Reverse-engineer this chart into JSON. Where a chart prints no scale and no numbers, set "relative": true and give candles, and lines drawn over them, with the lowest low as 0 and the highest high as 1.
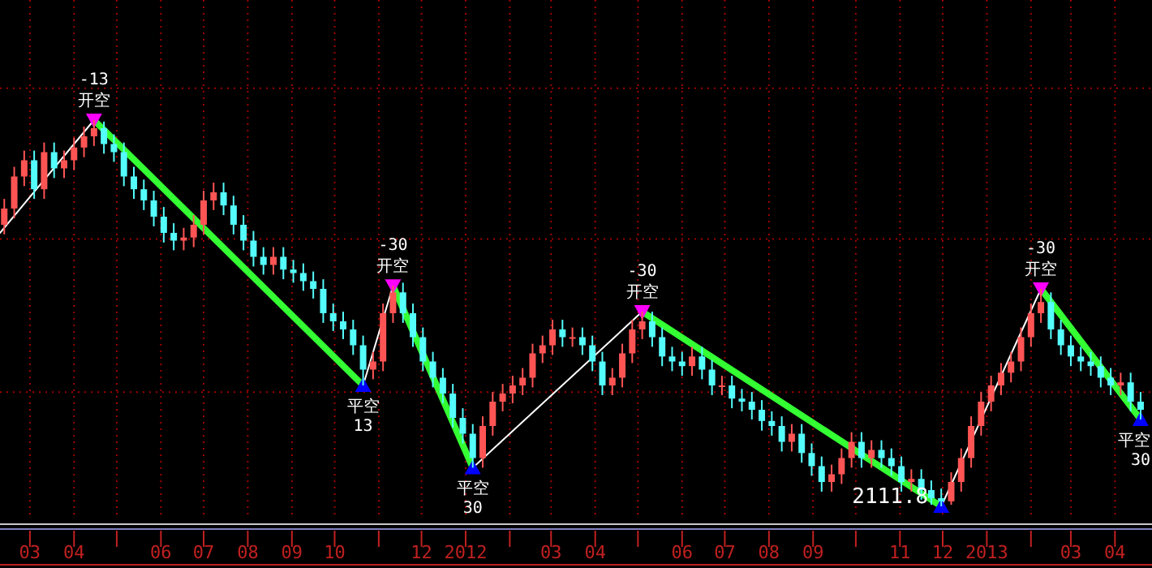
{
  "chart_data": {
    "type": "candlestick",
    "relative": true,
    "grid": true,
    "xlim": [
      "2011-02-08",
      "2013-04-27"
    ],
    "xticks": [
      {
        "value": "2011-03-01",
        "label": "03"
      },
      {
        "value": "2011-04-01",
        "label": "04"
      },
      {
        "value": "2011-05-01",
        "label": null
      },
      {
        "value": "2011-06-01",
        "label": "06"
      },
      {
        "value": "2011-07-01",
        "label": "07"
      },
      {
        "value": "2011-08-01",
        "label": "08"
      },
      {
        "value": "2011-09-01",
        "label": "09"
      },
      {
        "value": "2011-10-01",
        "label": "10"
      },
      {
        "value": "2011-11-01",
        "label": null
      },
      {
        "value": "2011-12-01",
        "label": "12"
      },
      {
        "value": "2012-01-01",
        "label": "2012"
      },
      {
        "value": "2012-02-01",
        "label": null
      },
      {
        "value": "2012-03-01",
        "label": "03"
      },
      {
        "value": "2012-04-01",
        "label": "04"
      },
      {
        "value": "2012-05-01",
        "label": null
      },
      {
        "value": "2012-06-01",
        "label": "06"
      },
      {
        "value": "2012-07-01",
        "label": "07"
      },
      {
        "value": "2012-08-01",
        "label": "08"
      },
      {
        "value": "2012-09-01",
        "label": "09"
      },
      {
        "value": "2012-10-01",
        "label": null
      },
      {
        "value": "2012-11-01",
        "label": "11"
      },
      {
        "value": "2012-12-01",
        "label": "12"
      },
      {
        "value": "2013-01-01",
        "label": "2013"
      },
      {
        "value": "2013-02-01",
        "label": null
      },
      {
        "value": "2013-03-01",
        "label": "03"
      },
      {
        "value": "2013-04-01",
        "label": "04"
      }
    ],
    "series": [
      {
        "x": [
          "2011-02-11",
          "2011-02-18",
          "2011-02-25",
          "2011-03-04",
          "2011-03-11",
          "2011-03-18",
          "2011-03-25",
          "2011-04-01",
          "2011-04-08",
          "2011-04-15",
          "2011-04-22",
          "2011-04-29",
          "2011-05-06",
          "2011-05-13",
          "2011-05-20",
          "2011-05-27",
          "2011-06-03",
          "2011-06-10",
          "2011-06-17",
          "2011-06-24",
          "2011-07-01",
          "2011-07-08",
          "2011-07-15",
          "2011-07-22",
          "2011-07-29",
          "2011-08-05",
          "2011-08-12",
          "2011-08-19",
          "2011-08-26",
          "2011-09-02",
          "2011-09-09",
          "2011-09-16",
          "2011-09-23",
          "2011-09-30",
          "2011-10-07",
          "2011-10-14",
          "2011-10-21",
          "2011-10-28",
          "2011-11-04",
          "2011-11-11",
          "2011-11-18",
          "2011-11-25",
          "2011-12-02",
          "2011-12-09",
          "2011-12-16",
          "2011-12-23",
          "2011-12-30",
          "2012-01-06",
          "2012-01-13",
          "2012-01-20",
          "2012-01-27",
          "2012-02-03",
          "2012-02-10",
          "2012-02-17",
          "2012-02-24",
          "2012-03-02",
          "2012-03-09",
          "2012-03-16",
          "2012-03-23",
          "2012-03-30",
          "2012-04-06",
          "2012-04-13",
          "2012-04-20",
          "2012-04-27",
          "2012-05-04",
          "2012-05-11",
          "2012-05-18",
          "2012-05-25",
          "2012-06-01",
          "2012-06-08",
          "2012-06-15",
          "2012-06-22",
          "2012-06-29",
          "2012-07-06",
          "2012-07-13",
          "2012-07-20",
          "2012-07-27",
          "2012-08-03",
          "2012-08-10",
          "2012-08-17",
          "2012-08-24",
          "2012-08-31",
          "2012-09-07",
          "2012-09-14",
          "2012-09-21",
          "2012-09-28",
          "2012-10-05",
          "2012-10-12",
          "2012-10-19",
          "2012-10-26",
          "2012-11-02",
          "2012-11-09",
          "2012-11-16",
          "2012-11-23",
          "2012-11-30",
          "2012-12-07",
          "2012-12-14",
          "2012-12-21",
          "2012-12-28",
          "2013-01-04",
          "2013-01-11",
          "2013-01-18",
          "2013-01-25",
          "2013-02-01",
          "2013-02-08",
          "2013-02-15",
          "2013-02-22",
          "2013-03-01",
          "2013-03-08",
          "2013-03-15",
          "2013-03-22",
          "2013-03-29",
          "2013-04-05",
          "2013-04-12",
          "2013-04-19"
        ],
        "ohlc": [
          [
            0.729,
            0.796,
            0.704,
            0.771
          ],
          [
            0.771,
            0.879,
            0.746,
            0.854
          ],
          [
            0.854,
            0.921,
            0.829,
            0.896
          ],
          [
            0.896,
            0.921,
            0.796,
            0.821
          ],
          [
            0.821,
            0.942,
            0.796,
            0.917
          ],
          [
            0.917,
            0.942,
            0.85,
            0.875
          ],
          [
            0.875,
            0.921,
            0.85,
            0.896
          ],
          [
            0.896,
            0.954,
            0.871,
            0.929
          ],
          [
            0.929,
            0.983,
            0.904,
            0.958
          ],
          [
            0.958,
            1,
            0.933,
            0.979
          ],
          [
            0.979,
            0.996,
            0.913,
            0.938
          ],
          [
            0.938,
            0.963,
            0.892,
            0.917
          ],
          [
            0.917,
            0.942,
            0.829,
            0.854
          ],
          [
            0.854,
            0.879,
            0.796,
            0.821
          ],
          [
            0.821,
            0.846,
            0.767,
            0.792
          ],
          [
            0.792,
            0.817,
            0.725,
            0.75
          ],
          [
            0.75,
            0.775,
            0.683,
            0.708
          ],
          [
            0.708,
            0.733,
            0.663,
            0.688
          ],
          [
            0.688,
            0.721,
            0.663,
            0.696
          ],
          [
            0.696,
            0.754,
            0.671,
            0.729
          ],
          [
            0.729,
            0.817,
            0.704,
            0.792
          ],
          [
            0.792,
            0.838,
            0.767,
            0.813
          ],
          [
            0.813,
            0.838,
            0.754,
            0.779
          ],
          [
            0.779,
            0.804,
            0.704,
            0.729
          ],
          [
            0.729,
            0.754,
            0.663,
            0.688
          ],
          [
            0.688,
            0.713,
            0.621,
            0.646
          ],
          [
            0.646,
            0.671,
            0.6,
            0.625
          ],
          [
            0.625,
            0.671,
            0.6,
            0.646
          ],
          [
            0.646,
            0.671,
            0.588,
            0.613
          ],
          [
            0.613,
            0.638,
            0.579,
            0.604
          ],
          [
            0.604,
            0.629,
            0.558,
            0.583
          ],
          [
            0.583,
            0.608,
            0.538,
            0.563
          ],
          [
            0.563,
            0.588,
            0.475,
            0.5
          ],
          [
            0.5,
            0.525,
            0.454,
            0.479
          ],
          [
            0.479,
            0.504,
            0.433,
            0.458
          ],
          [
            0.458,
            0.483,
            0.392,
            0.417
          ],
          [
            0.417,
            0.442,
            0.313,
            0.354
          ],
          [
            0.354,
            0.4,
            0.329,
            0.375
          ],
          [
            0.375,
            0.525,
            0.35,
            0.5
          ],
          [
            0.5,
            0.571,
            0.475,
            0.554
          ],
          [
            0.554,
            0.579,
            0.475,
            0.5
          ],
          [
            0.5,
            0.525,
            0.413,
            0.438
          ],
          [
            0.438,
            0.463,
            0.35,
            0.375
          ],
          [
            0.375,
            0.4,
            0.308,
            0.333
          ],
          [
            0.333,
            0.358,
            0.267,
            0.292
          ],
          [
            0.292,
            0.317,
            0.204,
            0.229
          ],
          [
            0.229,
            0.254,
            0.163,
            0.188
          ],
          [
            0.188,
            0.213,
            0.1,
            0.125
          ],
          [
            0.125,
            0.233,
            0.1,
            0.208
          ],
          [
            0.208,
            0.296,
            0.183,
            0.271
          ],
          [
            0.271,
            0.317,
            0.246,
            0.292
          ],
          [
            0.292,
            0.338,
            0.267,
            0.313
          ],
          [
            0.313,
            0.358,
            0.288,
            0.333
          ],
          [
            0.333,
            0.421,
            0.308,
            0.396
          ],
          [
            0.396,
            0.442,
            0.371,
            0.417
          ],
          [
            0.417,
            0.483,
            0.392,
            0.458
          ],
          [
            0.458,
            0.483,
            0.413,
            0.438
          ],
          [
            0.438,
            0.463,
            0.413,
            0.438
          ],
          [
            0.438,
            0.463,
            0.392,
            0.417
          ],
          [
            0.417,
            0.442,
            0.35,
            0.375
          ],
          [
            0.375,
            0.4,
            0.288,
            0.313
          ],
          [
            0.313,
            0.358,
            0.288,
            0.333
          ],
          [
            0.333,
            0.421,
            0.308,
            0.396
          ],
          [
            0.396,
            0.483,
            0.371,
            0.458
          ],
          [
            0.458,
            0.504,
            0.433,
            0.479
          ],
          [
            0.479,
            0.504,
            0.413,
            0.438
          ],
          [
            0.438,
            0.463,
            0.363,
            0.388
          ],
          [
            0.388,
            0.413,
            0.35,
            0.375
          ],
          [
            0.375,
            0.4,
            0.338,
            0.363
          ],
          [
            0.363,
            0.413,
            0.338,
            0.388
          ],
          [
            0.388,
            0.413,
            0.329,
            0.354
          ],
          [
            0.354,
            0.379,
            0.288,
            0.313
          ],
          [
            0.313,
            0.338,
            0.288,
            0.313
          ],
          [
            0.313,
            0.338,
            0.254,
            0.279
          ],
          [
            0.279,
            0.304,
            0.246,
            0.271
          ],
          [
            0.271,
            0.296,
            0.225,
            0.25
          ],
          [
            0.25,
            0.275,
            0.196,
            0.221
          ],
          [
            0.221,
            0.246,
            0.183,
            0.208
          ],
          [
            0.208,
            0.233,
            0.142,
            0.167
          ],
          [
            0.167,
            0.213,
            0.142,
            0.188
          ],
          [
            0.188,
            0.213,
            0.113,
            0.138
          ],
          [
            0.138,
            0.163,
            0.079,
            0.104
          ],
          [
            0.104,
            0.129,
            0.038,
            0.063
          ],
          [
            0.063,
            0.108,
            0.038,
            0.083
          ],
          [
            0.083,
            0.15,
            0.058,
            0.125
          ],
          [
            0.125,
            0.192,
            0.1,
            0.167
          ],
          [
            0.167,
            0.192,
            0.1,
            0.125
          ],
          [
            0.125,
            0.171,
            0.1,
            0.146
          ],
          [
            0.146,
            0.171,
            0.1,
            0.125
          ],
          [
            0.125,
            0.15,
            0.079,
            0.104
          ],
          [
            0.104,
            0.129,
            0.038,
            0.063
          ],
          [
            0.063,
            0.096,
            0.038,
            0.071
          ],
          [
            0.071,
            0.096,
            0.017,
            0.042
          ],
          [
            0.042,
            0.067,
            0.004,
            0.021
          ],
          [
            0.021,
            0.046,
            0,
            0.013
          ],
          [
            0.013,
            0.088,
            0.004,
            0.063
          ],
          [
            0.063,
            0.15,
            0.038,
            0.125
          ],
          [
            0.125,
            0.233,
            0.1,
            0.208
          ],
          [
            0.208,
            0.296,
            0.183,
            0.271
          ],
          [
            0.271,
            0.338,
            0.246,
            0.313
          ],
          [
            0.313,
            0.371,
            0.288,
            0.346
          ],
          [
            0.346,
            0.4,
            0.321,
            0.375
          ],
          [
            0.375,
            0.463,
            0.35,
            0.438
          ],
          [
            0.438,
            0.525,
            0.413,
            0.5
          ],
          [
            0.5,
            0.563,
            0.475,
            0.529
          ],
          [
            0.529,
            0.554,
            0.433,
            0.458
          ],
          [
            0.458,
            0.483,
            0.392,
            0.417
          ],
          [
            0.417,
            0.442,
            0.363,
            0.388
          ],
          [
            0.388,
            0.413,
            0.35,
            0.375
          ],
          [
            0.375,
            0.4,
            0.338,
            0.363
          ],
          [
            0.363,
            0.388,
            0.308,
            0.333
          ],
          [
            0.333,
            0.358,
            0.288,
            0.313
          ],
          [
            0.313,
            0.346,
            0.288,
            0.321
          ],
          [
            0.321,
            0.346,
            0.246,
            0.271
          ],
          [
            0.271,
            0.296,
            0.225,
            0.25
          ]
        ],
        "colors": [
          "#ff5454",
          "#ff5454",
          "#ff5454",
          "#54fcfc",
          "#ff5454",
          "#54fcfc",
          "#ff5454",
          "#ff5454",
          "#ff5454",
          "#ff5454",
          "#54fcfc",
          "#54fcfc",
          "#54fcfc",
          "#54fcfc",
          "#54fcfc",
          "#54fcfc",
          "#54fcfc",
          "#54fcfc",
          "#ff5454",
          "#ff5454",
          "#ff5454",
          "#ff5454",
          "#54fcfc",
          "#54fcfc",
          "#54fcfc",
          "#54fcfc",
          "#54fcfc",
          "#ff5454",
          "#54fcfc",
          "#54fcfc",
          "#54fcfc",
          "#54fcfc",
          "#54fcfc",
          "#54fcfc",
          "#54fcfc",
          "#54fcfc",
          "#54fcfc",
          "#ff5454",
          "#ff5454",
          "#ff5454",
          "#54fcfc",
          "#54fcfc",
          "#54fcfc",
          "#54fcfc",
          "#54fcfc",
          "#54fcfc",
          "#54fcfc",
          "#54fcfc",
          "#ff5454",
          "#ff5454",
          "#ff5454",
          "#ff5454",
          "#ff5454",
          "#ff5454",
          "#ff5454",
          "#ff5454",
          "#54fcfc",
          "#ff5454",
          "#54fcfc",
          "#54fcfc",
          "#54fcfc",
          "#ff5454",
          "#ff5454",
          "#ff5454",
          "#ff5454",
          "#54fcfc",
          "#54fcfc",
          "#54fcfc",
          "#54fcfc",
          "#ff5454",
          "#54fcfc",
          "#54fcfc",
          "#ff5454",
          "#54fcfc",
          "#54fcfc",
          "#54fcfc",
          "#54fcfc",
          "#54fcfc",
          "#54fcfc",
          "#ff5454",
          "#54fcfc",
          "#54fcfc",
          "#54fcfc",
          "#ff5454",
          "#ff5454",
          "#ff5454",
          "#54fcfc",
          "#ff5454",
          "#54fcfc",
          "#54fcfc",
          "#54fcfc",
          "#ff5454",
          "#54fcfc",
          "#54fcfc",
          "#54fcfc",
          "#ff5454",
          "#ff5454",
          "#ff5454",
          "#ff5454",
          "#ff5454",
          "#ff5454",
          "#ff5454",
          "#ff5454",
          "#ff5454",
          "#ff5454",
          "#54fcfc",
          "#54fcfc",
          "#54fcfc",
          "#54fcfc",
          "#54fcfc",
          "#54fcfc",
          "#54fcfc",
          "#ff5454",
          "#54fcfc",
          "#54fcfc"
        ]
      },
      {
        "type": "line",
        "color": "#ffffff",
        "x": [
          "2011-02-08",
          "2011-04-15"
        ],
        "values": [
          0.708,
          1
        ]
      },
      {
        "type": "line",
        "color": "#ffffff",
        "x": [
          "2011-10-21",
          "2011-11-11"
        ],
        "values": [
          0.313,
          0.571
        ]
      },
      {
        "type": "line",
        "color": "#ffffff",
        "x": [
          "2012-01-06",
          "2012-05-04"
        ],
        "values": [
          0.1,
          0.504
        ]
      },
      {
        "type": "line",
        "color": "#ffffff",
        "x": [
          "2012-11-30",
          "2013-02-08"
        ],
        "values": [
          0,
          0.563
        ]
      },
      {
        "type": "line",
        "color": "#33ff33",
        "x": [
          "2011-04-15",
          "2011-10-21"
        ],
        "values": [
          1,
          0.313
        ]
      },
      {
        "type": "line",
        "color": "#33ff33",
        "x": [
          "2011-11-11",
          "2012-01-06"
        ],
        "values": [
          0.571,
          0.1
        ]
      },
      {
        "type": "line",
        "color": "#33ff33",
        "x": [
          "2012-05-04",
          "2012-11-30"
        ],
        "values": [
          0.504,
          0
        ]
      },
      {
        "type": "line",
        "color": "#33ff33",
        "x": [
          "2013-02-08",
          "2013-04-19"
        ],
        "values": [
          0.563,
          0.225
        ]
      },
      {
        "type": "scatter",
        "marker": "triangle",
        "color": "#ff00ff",
        "x": [
          "2011-04-15",
          "2011-11-11",
          "2012-05-04",
          "2013-02-08"
        ],
        "values": [
          1,
          0.571,
          0.504,
          0.563
        ]
      },
      {
        "type": "scatter",
        "marker": "triangle",
        "color": "#0000ff",
        "x": [
          "2011-10-21",
          "2012-01-06",
          "2012-11-30",
          "2013-04-19"
        ],
        "values": [
          0.313,
          0.1,
          0,
          0.225
        ]
      }
    ],
    "annotations": [
      {
        "text": "-13",
        "x": "2011-04-15",
        "y": 1
      },
      {
        "text": "开空",
        "x": "2011-04-15",
        "y": 1
      },
      {
        "text": "平空",
        "x": "2011-10-21",
        "y": 0.313
      },
      {
        "text": "13",
        "x": "2011-10-21",
        "y": 0.313
      },
      {
        "text": "-30",
        "x": "2011-11-11",
        "y": 0.571
      },
      {
        "text": "开空",
        "x": "2011-11-11",
        "y": 0.571
      },
      {
        "text": "平空",
        "x": "2012-01-06",
        "y": 0.1
      },
      {
        "text": "30",
        "x": "2012-01-06",
        "y": 0.1
      },
      {
        "text": "-30",
        "x": "2012-05-04",
        "y": 0.504
      },
      {
        "text": "开空",
        "x": "2012-05-04",
        "y": 0.504
      },
      {
        "text": "2111.8",
        "x": "2012-11-30",
        "y": 0
      },
      {
        "text": "-30",
        "x": "2013-02-08",
        "y": 0.563
      },
      {
        "text": "开空",
        "x": "2013-02-08",
        "y": 0.563
      },
      {
        "text": "平空",
        "x": "2013-04-19",
        "y": 0.225
      },
      {
        "text": "30",
        "x": "2013-04-19",
        "y": 0.225
      }
    ]
  }
}
